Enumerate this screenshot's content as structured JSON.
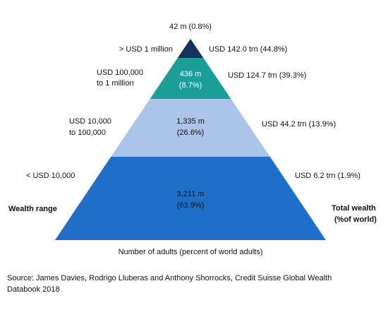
{
  "tiers": [
    {
      "range": [
        "> USD 1 million"
      ],
      "adults": [
        "42 m (0.8%)"
      ],
      "wealth": "USD 142.0 trn (44.8%)"
    },
    {
      "range": [
        "USD 100,000",
        "to 1 million"
      ],
      "adults": [
        "436 m",
        "(8.7%)"
      ],
      "wealth": "USD 124.7 trn (39.3%)"
    },
    {
      "range": [
        "USD 10,000",
        "to 100,000"
      ],
      "adults": [
        "1,335 m",
        "(26.6%)"
      ],
      "wealth": "USD 44.2 trn (13.9%)"
    },
    {
      "range": [
        "< USD 10,000"
      ],
      "adults": [
        "3,211 m",
        "(63.9%)"
      ],
      "wealth": "USD 6.2 trn (1.9%)"
    }
  ],
  "left_heading": "Wealth range",
  "right_heading": [
    "Total wealth",
    "(%of world)"
  ],
  "bottom_caption": "Number of adults (percent of world adults)",
  "source": [
    "Source: James Davies, Rodrigo Lluberas and Anthony Shorrocks, Credit Suisse Global Wealth",
    "Databook 2018"
  ]
}
